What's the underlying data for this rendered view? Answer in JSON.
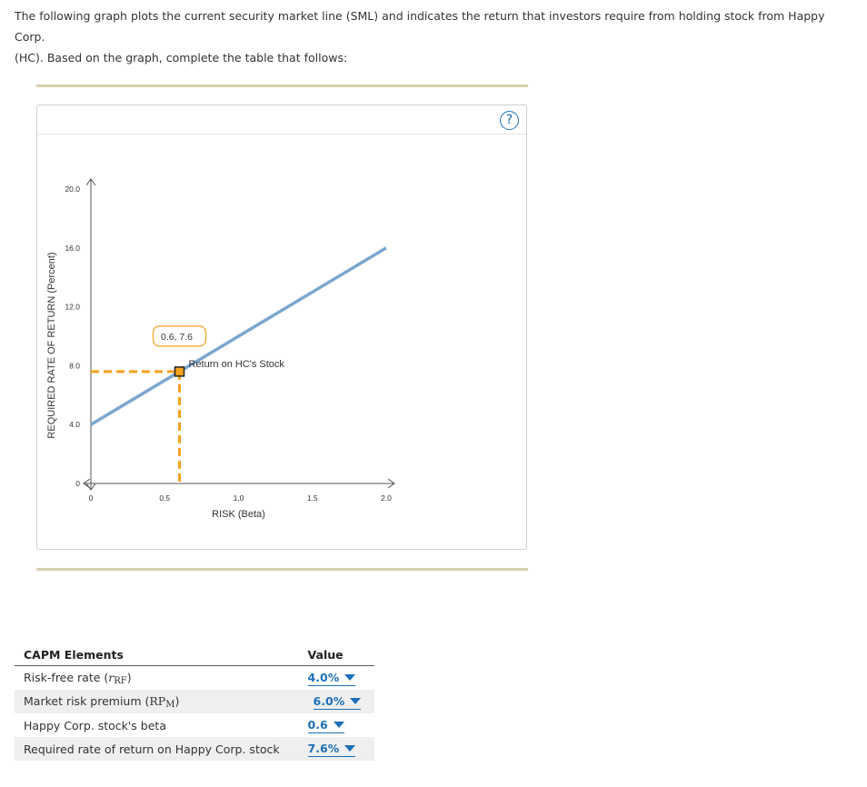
{
  "intro": {
    "line1": "The following graph plots the current security market line (SML) and indicates the return that investors require from holding stock from Happy Corp.",
    "line2": "(HC). Based on the graph, complete the table that follows:"
  },
  "help": {
    "label": "?"
  },
  "chart_data": {
    "type": "line",
    "xlabel": "RISK (Beta)",
    "ylabel": "REQUIRED RATE OF RETURN (Percent)",
    "xlim": [
      0,
      2.0
    ],
    "ylim": [
      0,
      20.0
    ],
    "x_ticks": [
      0,
      0.5,
      1.0,
      1.5,
      2.0
    ],
    "x_tick_labels": [
      "0",
      "0.5",
      "1.0",
      "1.5",
      "2.0"
    ],
    "y_ticks": [
      0,
      4.0,
      8.0,
      12.0,
      16.0,
      20.0
    ],
    "y_tick_labels": [
      "0",
      "4.0",
      "8.0",
      "12.0",
      "16.0",
      "20.0"
    ],
    "series": [
      {
        "x": [
          0,
          2.0
        ],
        "y": [
          4.0,
          16.0
        ],
        "color": "#7ba7cf"
      }
    ],
    "point": {
      "x": 0.6,
      "y": 7.6,
      "label": "Return on HC's Stock",
      "tooltip": "0.6, 7.6",
      "color": "#f7a21d"
    }
  },
  "table": {
    "col_element": "CAPM Elements",
    "col_value": "Value",
    "rows": [
      {
        "pre": "Risk-free rate (",
        "math": "r",
        "sub": "RF",
        "post": ")",
        "value": "4.0%"
      },
      {
        "pre": "Market risk premium (",
        "math": "RP",
        "sub": "M",
        "post": ")",
        "value": "6.0%"
      },
      {
        "pre": "Happy Corp. stock's beta",
        "math": "",
        "sub": "",
        "post": "",
        "value": "0.6"
      },
      {
        "pre": "Required rate of return on Happy Corp. stock",
        "math": "",
        "sub": "",
        "post": "",
        "value": "7.6%"
      }
    ]
  }
}
